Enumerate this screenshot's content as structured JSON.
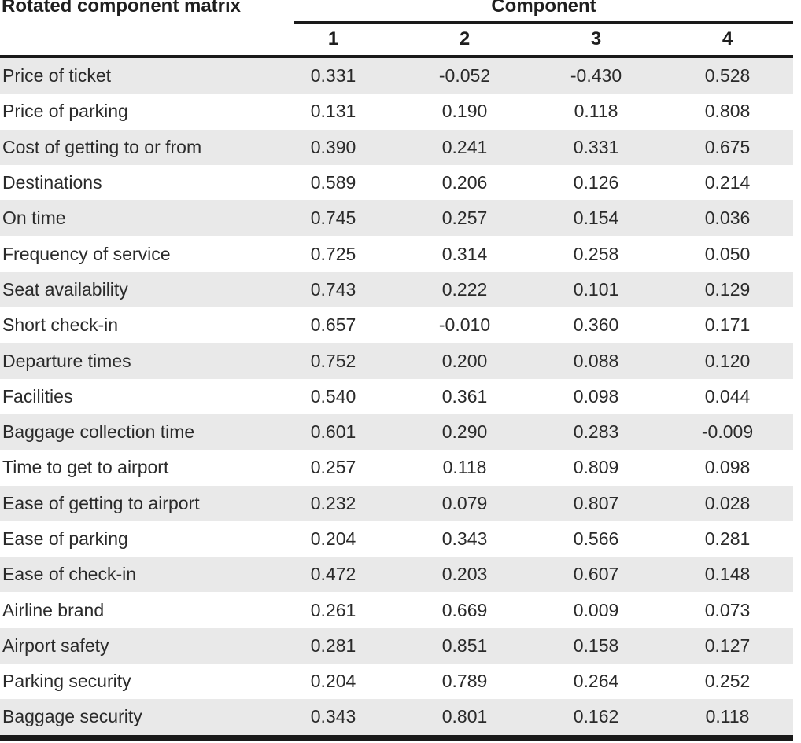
{
  "chart_data": {
    "type": "table",
    "title": "Rotated component matrix",
    "column_group": "Component",
    "columns": [
      "1",
      "2",
      "3",
      "4"
    ],
    "value_format": "3-decimals",
    "rows": [
      {
        "label": "Price of ticket",
        "values": [
          0.331,
          -0.052,
          -0.43,
          0.528
        ]
      },
      {
        "label": "Price of parking",
        "values": [
          0.131,
          0.19,
          0.118,
          0.808
        ]
      },
      {
        "label": "Cost of getting to or from",
        "values": [
          0.39,
          0.241,
          0.331,
          0.675
        ]
      },
      {
        "label": "Destinations",
        "values": [
          0.589,
          0.206,
          0.126,
          0.214
        ]
      },
      {
        "label": "On time",
        "values": [
          0.745,
          0.257,
          0.154,
          0.036
        ]
      },
      {
        "label": "Frequency of service",
        "values": [
          0.725,
          0.314,
          0.258,
          0.05
        ]
      },
      {
        "label": "Seat availability",
        "values": [
          0.743,
          0.222,
          0.101,
          0.129
        ]
      },
      {
        "label": "Short check-in",
        "values": [
          0.657,
          -0.01,
          0.36,
          0.171
        ]
      },
      {
        "label": "Departure times",
        "values": [
          0.752,
          0.2,
          0.088,
          0.12
        ]
      },
      {
        "label": "Facilities",
        "values": [
          0.54,
          0.361,
          0.098,
          0.044
        ]
      },
      {
        "label": "Baggage collection time",
        "values": [
          0.601,
          0.29,
          0.283,
          -0.009
        ]
      },
      {
        "label": "Time to get to airport",
        "values": [
          0.257,
          0.118,
          0.809,
          0.098
        ]
      },
      {
        "label": "Ease of getting to airport",
        "values": [
          0.232,
          0.079,
          0.807,
          0.028
        ]
      },
      {
        "label": "Ease of parking",
        "values": [
          0.204,
          0.343,
          0.566,
          0.281
        ]
      },
      {
        "label": "Ease of check-in",
        "values": [
          0.472,
          0.203,
          0.607,
          0.148
        ]
      },
      {
        "label": "Airline brand",
        "values": [
          0.261,
          0.669,
          0.009,
          0.073
        ]
      },
      {
        "label": "Airport safety",
        "values": [
          0.281,
          0.851,
          0.158,
          0.127
        ]
      },
      {
        "label": "Parking security",
        "values": [
          0.204,
          0.789,
          0.264,
          0.252
        ]
      },
      {
        "label": "Baggage security",
        "values": [
          0.343,
          0.801,
          0.162,
          0.118
        ]
      }
    ]
  },
  "colors": {
    "row_stripe": "#e9e9e9",
    "rule": "#1a1a1a",
    "text": "#262626"
  }
}
